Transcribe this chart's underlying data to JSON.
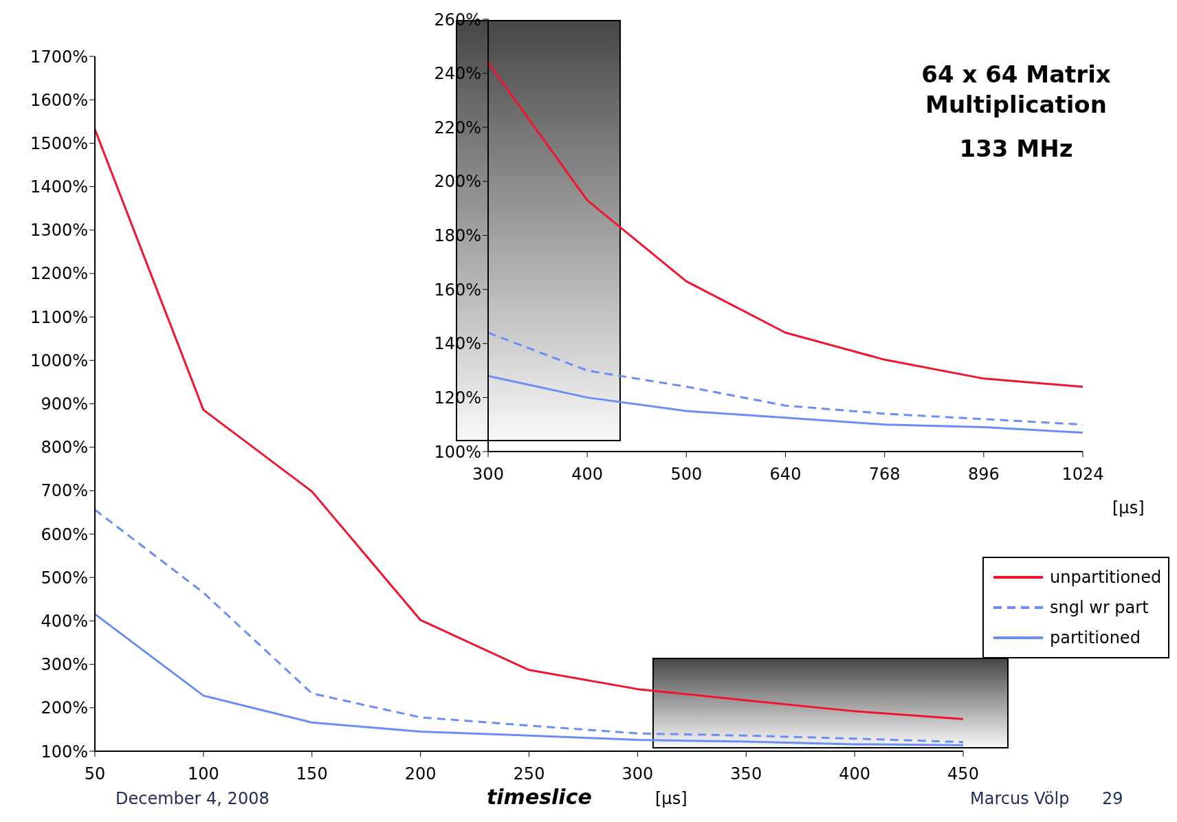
{
  "chart_data": [
    {
      "type": "line",
      "xlabel": "timeslice",
      "x": [
        50,
        100,
        150,
        200,
        250,
        300,
        350,
        400,
        450
      ],
      "series": [
        {
          "name": "unpartitioned",
          "color": "#f0142f",
          "values": [
            1532,
            886,
            698,
            402,
            287,
            243,
            217,
            192,
            174
          ]
        },
        {
          "name": "sngl wr part",
          "color": "#6b8ef5",
          "line_style": "dashed",
          "values": [
            656,
            465,
            233,
            178,
            159,
            141,
            136,
            129,
            121
          ]
        },
        {
          "name": "partitioned",
          "color": "#6b8ef5",
          "values": [
            416,
            228,
            166,
            145,
            136,
            126,
            122,
            116,
            114
          ]
        }
      ],
      "xlim": [
        50,
        450
      ],
      "xticks": [
        50,
        100,
        150,
        200,
        250,
        300,
        350,
        400,
        450
      ],
      "ylim": [
        100,
        1700
      ],
      "yticks": [
        {
          "value": 100,
          "label": "100%"
        },
        {
          "value": 200,
          "label": "200%"
        },
        {
          "value": 300,
          "label": "300%"
        },
        {
          "value": 400,
          "label": "400%"
        },
        {
          "value": 500,
          "label": "500%"
        },
        {
          "value": 600,
          "label": "600%"
        },
        {
          "value": 700,
          "label": "700%"
        },
        {
          "value": 800,
          "label": "800%"
        },
        {
          "value": 900,
          "label": "900%"
        },
        {
          "value": 1000,
          "label": "1000%"
        },
        {
          "value": 1100,
          "label": "1100%"
        },
        {
          "value": 1200,
          "label": "1200%"
        },
        {
          "value": 1300,
          "label": "1300%"
        },
        {
          "value": 1400,
          "label": "1400%"
        },
        {
          "value": 1500,
          "label": "1500%"
        },
        {
          "value": 1600,
          "label": "1600%"
        },
        {
          "value": 1700,
          "label": "1700%"
        }
      ],
      "legend": "right",
      "grid": false,
      "annotations": [
        "[µs]",
        "December 4, 2008",
        "Marcus Völp",
        "29"
      ]
    },
    {
      "type": "line",
      "title": "64 x 64 Matrix Multiplication",
      "subtitle": "133 MHz",
      "categories": [
        "300",
        "400",
        "500",
        "640",
        "768",
        "896",
        "1024"
      ],
      "series": [
        {
          "color": "#f0142f",
          "values": [
            244,
            193,
            163,
            144,
            134,
            127,
            124
          ]
        },
        {
          "color": "#6b8ef5",
          "line_style": "dashed",
          "values": [
            144,
            130,
            124,
            117,
            114,
            112,
            110
          ]
        },
        {
          "color": "#6b8ef5",
          "values": [
            128,
            120,
            115,
            112.5,
            110,
            109,
            107
          ]
        }
      ],
      "ylim": [
        100,
        260
      ],
      "yticks": [
        {
          "value": 100,
          "label": "100%"
        },
        {
          "value": 120,
          "label": "120%"
        },
        {
          "value": 140,
          "label": "140%"
        },
        {
          "value": 160,
          "label": "160%"
        },
        {
          "value": 180,
          "label": "180%"
        },
        {
          "value": 200,
          "label": "200%"
        },
        {
          "value": 220,
          "label": "220%"
        },
        {
          "value": 240,
          "label": "240%"
        },
        {
          "value": 260,
          "label": "260%"
        }
      ],
      "grid": false,
      "annotations": [
        "[µs]"
      ]
    }
  ]
}
